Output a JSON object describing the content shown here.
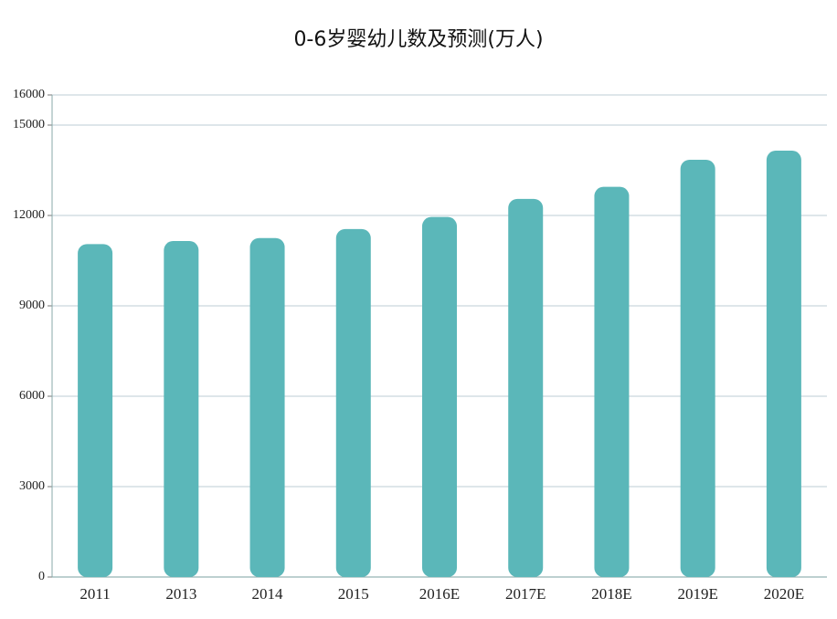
{
  "chart_data": {
    "type": "bar",
    "title": "0-6岁婴幼儿数及预测(万人)",
    "categories": [
      "2011",
      "2013",
      "2014",
      "2015",
      "2016E",
      "2017E",
      "2018E",
      "2019E",
      "2020E"
    ],
    "values": [
      11050,
      11150,
      11250,
      11550,
      11950,
      12550,
      12950,
      13850,
      14150
    ],
    "color": "#5bb7b9",
    "ylim": [
      0,
      16000
    ],
    "yticks": [
      0,
      3000,
      6000,
      9000,
      12000,
      15000,
      16000
    ],
    "grid": true
  }
}
